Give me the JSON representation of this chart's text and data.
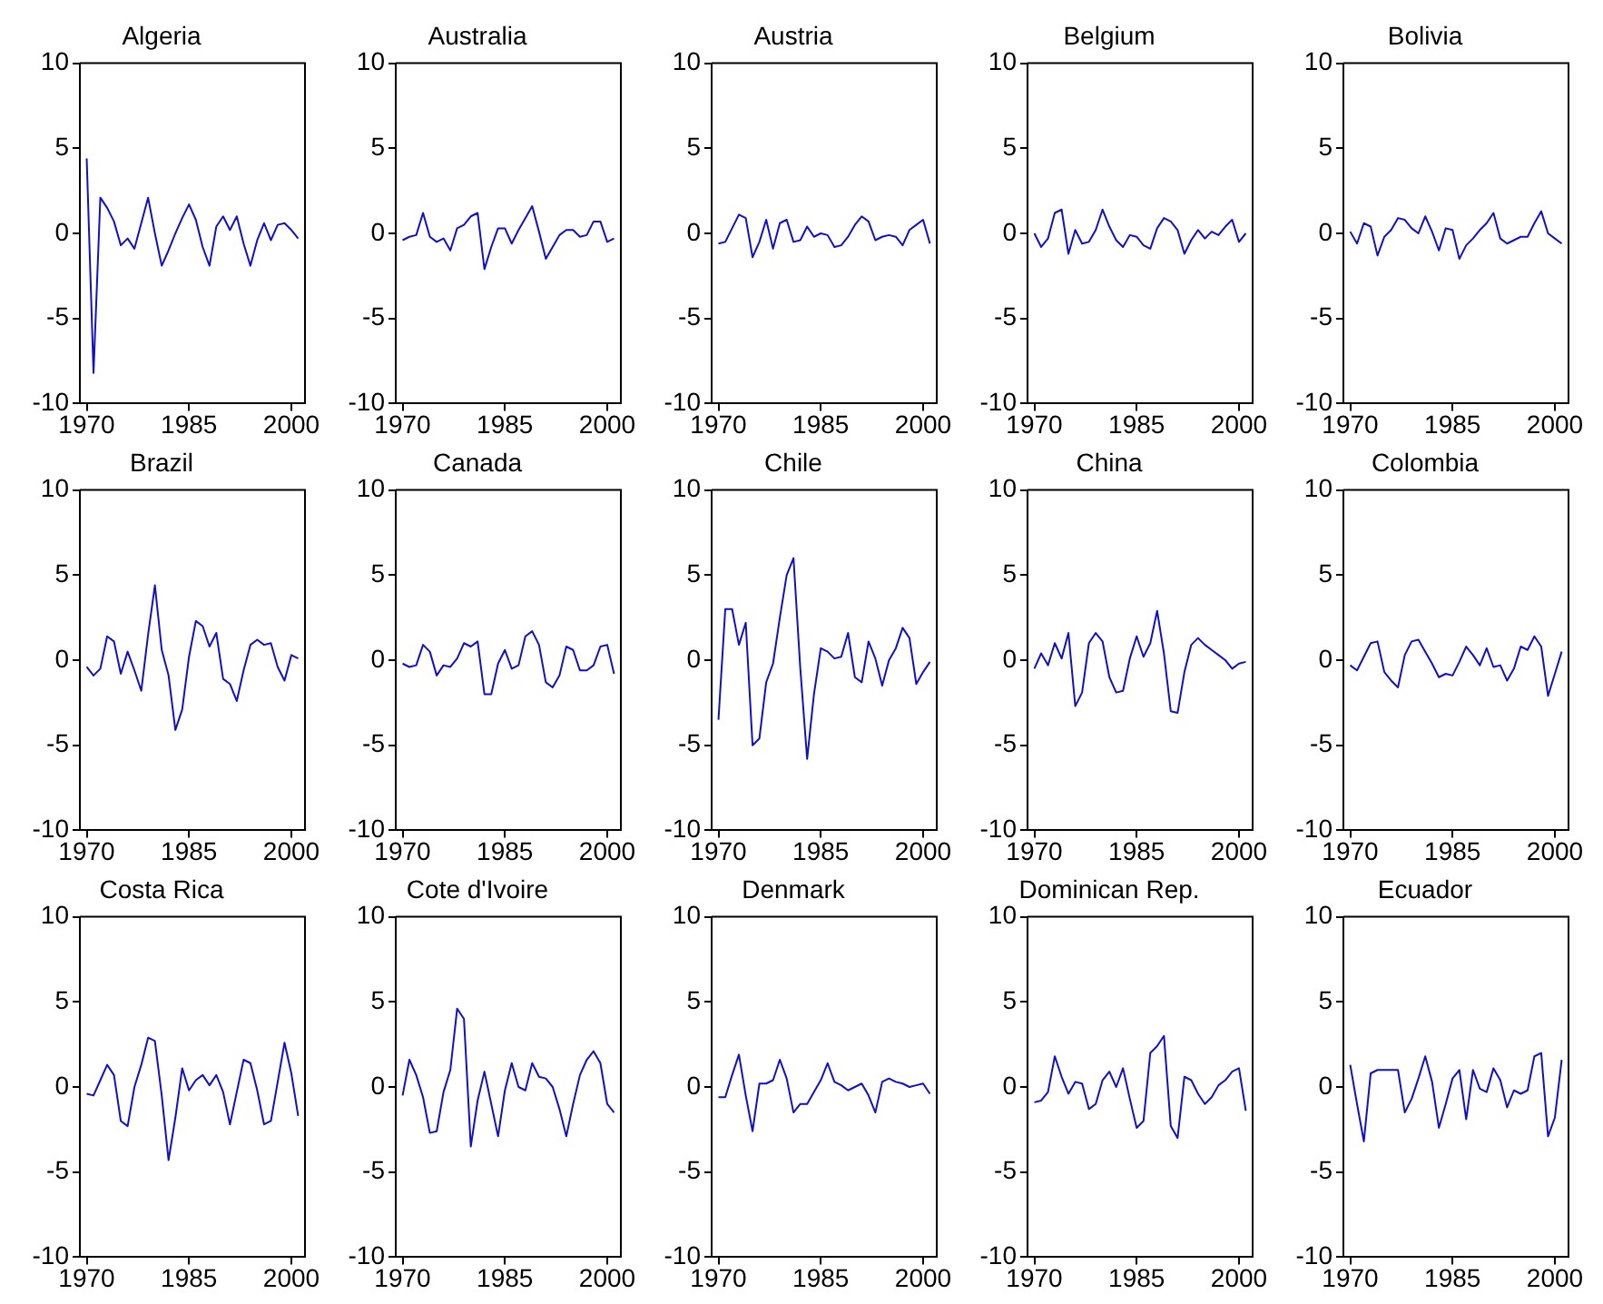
{
  "chart_data": [
    {
      "type": "line",
      "title": "Algeria",
      "color": "#1010c8",
      "xlim": [
        1969,
        2002
      ],
      "ylim": [
        -10,
        10
      ],
      "xticks": [
        1970,
        1985,
        2000
      ],
      "yticks": [
        -10,
        -5,
        0,
        5,
        10
      ],
      "x": [
        1970,
        1971,
        1972,
        1973,
        1974,
        1975,
        1976,
        1977,
        1978,
        1979,
        1980,
        1981,
        1982,
        1983,
        1984,
        1985,
        1986,
        1987,
        1988,
        1989,
        1990,
        1991,
        1992,
        1993,
        1994,
        1995,
        1996,
        1997,
        1998,
        1999,
        2000,
        2001
      ],
      "values": [
        4.4,
        -8.2,
        2.1,
        1.5,
        0.7,
        -0.7,
        -0.3,
        -0.9,
        0.6,
        2.1,
        0,
        -1.9,
        -1.0,
        0,
        0.9,
        1.7,
        0.8,
        -0.8,
        -1.9,
        0.4,
        1.0,
        0.2,
        1.0,
        -0.6,
        -1.9,
        -0.4,
        0.6,
        -0.4,
        0.5,
        0.6,
        0.2,
        -0.3
      ]
    },
    {
      "type": "line",
      "title": "Australia",
      "color": "#1010c8",
      "xlim": [
        1969,
        2002
      ],
      "ylim": [
        -10,
        10
      ],
      "xticks": [
        1970,
        1985,
        2000
      ],
      "yticks": [
        -10,
        -5,
        0,
        5,
        10
      ],
      "x": [
        1970,
        1971,
        1972,
        1973,
        1974,
        1975,
        1976,
        1977,
        1978,
        1979,
        1980,
        1981,
        1982,
        1983,
        1984,
        1985,
        1986,
        1987,
        1988,
        1989,
        1990,
        1991,
        1992,
        1993,
        1994,
        1995,
        1996,
        1997,
        1998,
        1999,
        2000,
        2001
      ],
      "values": [
        -0.4,
        -0.2,
        -0.1,
        1.2,
        -0.2,
        -0.5,
        -0.3,
        -1.0,
        0.3,
        0.5,
        1.0,
        1.2,
        -2.1,
        -0.8,
        0.3,
        0.3,
        -0.6,
        0.2,
        0.9,
        1.6,
        0.1,
        -1.5,
        -0.8,
        -0.1,
        0.2,
        0.2,
        -0.2,
        -0.1,
        0.7,
        0.7,
        -0.5,
        -0.3
      ]
    },
    {
      "type": "line",
      "title": "Austria",
      "color": "#1010c8",
      "xlim": [
        1969,
        2002
      ],
      "ylim": [
        -10,
        10
      ],
      "xticks": [
        1970,
        1985,
        2000
      ],
      "yticks": [
        -10,
        -5,
        0,
        5,
        10
      ],
      "x": [
        1970,
        1971,
        1972,
        1973,
        1974,
        1975,
        1976,
        1977,
        1978,
        1979,
        1980,
        1981,
        1982,
        1983,
        1984,
        1985,
        1986,
        1987,
        1988,
        1989,
        1990,
        1991,
        1992,
        1993,
        1994,
        1995,
        1996,
        1997,
        1998,
        1999,
        2000,
        2001
      ],
      "values": [
        -0.6,
        -0.5,
        0.3,
        1.1,
        0.9,
        -1.4,
        -0.5,
        0.8,
        -0.9,
        0.6,
        0.8,
        -0.5,
        -0.4,
        0.4,
        -0.2,
        0,
        -0.1,
        -0.8,
        -0.7,
        -0.2,
        0.5,
        1.0,
        0.7,
        -0.4,
        -0.2,
        -0.1,
        -0.2,
        -0.7,
        0.2,
        0.5,
        0.8,
        -0.6
      ]
    },
    {
      "type": "line",
      "title": "Belgium",
      "color": "#1010c8",
      "xlim": [
        1969,
        2002
      ],
      "ylim": [
        -10,
        10
      ],
      "xticks": [
        1970,
        1985,
        2000
      ],
      "yticks": [
        -10,
        -5,
        0,
        5,
        10
      ],
      "x": [
        1970,
        1971,
        1972,
        1973,
        1974,
        1975,
        1976,
        1977,
        1978,
        1979,
        1980,
        1981,
        1982,
        1983,
        1984,
        1985,
        1986,
        1987,
        1988,
        1989,
        1990,
        1991,
        1992,
        1993,
        1994,
        1995,
        1996,
        1997,
        1998,
        1999,
        2000,
        2001
      ],
      "values": [
        0,
        -0.8,
        -0.3,
        1.2,
        1.4,
        -1.2,
        0.2,
        -0.6,
        -0.5,
        0.2,
        1.4,
        0.4,
        -0.4,
        -0.8,
        -0.1,
        -0.2,
        -0.7,
        -0.9,
        0.3,
        0.9,
        0.7,
        0.2,
        -1.2,
        -0.4,
        0.2,
        -0.3,
        0.1,
        -0.1,
        0.4,
        0.8,
        -0.5,
        0
      ]
    },
    {
      "type": "line",
      "title": "Bolivia",
      "color": "#1010c8",
      "xlim": [
        1969,
        2002
      ],
      "ylim": [
        -10,
        10
      ],
      "xticks": [
        1970,
        1985,
        2000
      ],
      "yticks": [
        -10,
        -5,
        0,
        5,
        10
      ],
      "x": [
        1970,
        1971,
        1972,
        1973,
        1974,
        1975,
        1976,
        1977,
        1978,
        1979,
        1980,
        1981,
        1982,
        1983,
        1984,
        1985,
        1986,
        1987,
        1988,
        1989,
        1990,
        1991,
        1992,
        1993,
        1994,
        1995,
        1996,
        1997,
        1998,
        1999,
        2000,
        2001
      ],
      "values": [
        0.1,
        -0.6,
        0.6,
        0.4,
        -1.3,
        -0.2,
        0.2,
        0.9,
        0.8,
        0.3,
        0,
        1.0,
        0.1,
        -1.0,
        0.3,
        0.2,
        -1.5,
        -0.7,
        -0.3,
        0.2,
        0.6,
        1.2,
        -0.3,
        -0.6,
        -0.4,
        -0.2,
        -0.2,
        0.6,
        1.3,
        0,
        -0.3,
        -0.6
      ]
    },
    {
      "type": "line",
      "title": "Brazil",
      "color": "#1010c8",
      "xlim": [
        1969,
        2002
      ],
      "ylim": [
        -10,
        10
      ],
      "xticks": [
        1970,
        1985,
        2000
      ],
      "yticks": [
        -10,
        -5,
        0,
        5,
        10
      ],
      "x": [
        1970,
        1971,
        1972,
        1973,
        1974,
        1975,
        1976,
        1977,
        1978,
        1979,
        1980,
        1981,
        1982,
        1983,
        1984,
        1985,
        1986,
        1987,
        1988,
        1989,
        1990,
        1991,
        1992,
        1993,
        1994,
        1995,
        1996,
        1997,
        1998,
        1999,
        2000,
        2001
      ],
      "values": [
        -0.4,
        -0.9,
        -0.5,
        1.4,
        1.1,
        -0.8,
        0.5,
        -0.6,
        -1.8,
        1.5,
        4.4,
        0.6,
        -0.9,
        -4.1,
        -2.9,
        0.2,
        2.3,
        2.0,
        0.8,
        1.6,
        -1.1,
        -1.4,
        -2.4,
        -0.6,
        0.9,
        1.2,
        0.9,
        1.0,
        -0.4,
        -1.2,
        0.3,
        0.1
      ]
    },
    {
      "type": "line",
      "title": "Canada",
      "color": "#1010c8",
      "xlim": [
        1969,
        2002
      ],
      "ylim": [
        -10,
        10
      ],
      "xticks": [
        1970,
        1985,
        2000
      ],
      "yticks": [
        -10,
        -5,
        0,
        5,
        10
      ],
      "x": [
        1970,
        1971,
        1972,
        1973,
        1974,
        1975,
        1976,
        1977,
        1978,
        1979,
        1980,
        1981,
        1982,
        1983,
        1984,
        1985,
        1986,
        1987,
        1988,
        1989,
        1990,
        1991,
        1992,
        1993,
        1994,
        1995,
        1996,
        1997,
        1998,
        1999,
        2000,
        2001
      ],
      "values": [
        -0.2,
        -0.4,
        -0.3,
        0.9,
        0.5,
        -0.9,
        -0.3,
        -0.4,
        0.1,
        1.0,
        0.8,
        1.1,
        -2.0,
        -2.0,
        -0.2,
        0.6,
        -0.5,
        -0.3,
        1.4,
        1.7,
        0.9,
        -1.3,
        -1.6,
        -0.9,
        0.8,
        0.6,
        -0.6,
        -0.6,
        -0.3,
        0.8,
        0.9,
        -0.8
      ]
    },
    {
      "type": "line",
      "title": "Chile",
      "color": "#1010c8",
      "xlim": [
        1969,
        2002
      ],
      "ylim": [
        -10,
        10
      ],
      "xticks": [
        1970,
        1985,
        2000
      ],
      "yticks": [
        -10,
        -5,
        0,
        5,
        10
      ],
      "x": [
        1970,
        1971,
        1972,
        1973,
        1974,
        1975,
        1976,
        1977,
        1978,
        1979,
        1980,
        1981,
        1982,
        1983,
        1984,
        1985,
        1986,
        1987,
        1988,
        1989,
        1990,
        1991,
        1992,
        1993,
        1994,
        1995,
        1996,
        1997,
        1998,
        1999,
        2000,
        2001
      ],
      "values": [
        -3.5,
        3.0,
        3.0,
        0.9,
        2.2,
        -5.0,
        -4.6,
        -1.3,
        -0.2,
        2.5,
        5.0,
        6.0,
        -0.5,
        -5.8,
        -2.0,
        0.7,
        0.5,
        0.1,
        0.2,
        1.6,
        -1.0,
        -1.3,
        1.1,
        0.1,
        -1.5,
        0,
        0.7,
        1.9,
        1.3,
        -1.4,
        -0.7,
        -0.1
      ]
    },
    {
      "type": "line",
      "title": "China",
      "color": "#1010c8",
      "xlim": [
        1969,
        2002
      ],
      "ylim": [
        -10,
        10
      ],
      "xticks": [
        1970,
        1985,
        2000
      ],
      "yticks": [
        -10,
        -5,
        0,
        5,
        10
      ],
      "x": [
        1970,
        1971,
        1972,
        1973,
        1974,
        1975,
        1976,
        1977,
        1978,
        1979,
        1980,
        1981,
        1982,
        1983,
        1984,
        1985,
        1986,
        1987,
        1988,
        1989,
        1990,
        1991,
        1992,
        1993,
        1994,
        1995,
        1996,
        1997,
        1998,
        1999,
        2000,
        2001
      ],
      "values": [
        -0.5,
        0.4,
        -0.3,
        1.0,
        0.1,
        1.6,
        -2.7,
        -1.9,
        1.0,
        1.6,
        1.1,
        -1.0,
        -1.9,
        -1.8,
        0.1,
        1.4,
        0.2,
        1.0,
        2.9,
        0.4,
        -3.0,
        -3.1,
        -0.7,
        0.9,
        1.3,
        0.9,
        0.6,
        0.3,
        0,
        -0.5,
        -0.2,
        -0.1
      ]
    },
    {
      "type": "line",
      "title": "Colombia",
      "color": "#1010c8",
      "xlim": [
        1969,
        2002
      ],
      "ylim": [
        -10,
        10
      ],
      "xticks": [
        1970,
        1985,
        2000
      ],
      "yticks": [
        -10,
        -5,
        0,
        5,
        10
      ],
      "x": [
        1970,
        1971,
        1972,
        1973,
        1974,
        1975,
        1976,
        1977,
        1978,
        1979,
        1980,
        1981,
        1982,
        1983,
        1984,
        1985,
        1986,
        1987,
        1988,
        1989,
        1990,
        1991,
        1992,
        1993,
        1994,
        1995,
        1996,
        1997,
        1998,
        1999,
        2000,
        2001
      ],
      "values": [
        -0.3,
        -0.6,
        0.2,
        1.0,
        1.1,
        -0.7,
        -1.2,
        -1.6,
        0.3,
        1.1,
        1.2,
        0.5,
        -0.2,
        -1.0,
        -0.8,
        -0.9,
        -0.1,
        0.8,
        0.3,
        -0.3,
        0.7,
        -0.4,
        -0.3,
        -1.2,
        -0.5,
        0.8,
        0.6,
        1.4,
        0.8,
        -2.1,
        -0.8,
        0.5
      ]
    },
    {
      "type": "line",
      "title": "Costa Rica",
      "color": "#1010c8",
      "xlim": [
        1969,
        2002
      ],
      "ylim": [
        -10,
        10
      ],
      "xticks": [
        1970,
        1985,
        2000
      ],
      "yticks": [
        -10,
        -5,
        0,
        5,
        10
      ],
      "x": [
        1970,
        1971,
        1972,
        1973,
        1974,
        1975,
        1976,
        1977,
        1978,
        1979,
        1980,
        1981,
        1982,
        1983,
        1984,
        1985,
        1986,
        1987,
        1988,
        1989,
        1990,
        1991,
        1992,
        1993,
        1994,
        1995,
        1996,
        1997,
        1998,
        1999,
        2000,
        2001
      ],
      "values": [
        -0.4,
        -0.5,
        0.4,
        1.3,
        0.7,
        -2.0,
        -2.3,
        0,
        1.3,
        2.9,
        2.7,
        -0.5,
        -4.3,
        -1.8,
        1.1,
        -0.2,
        0.4,
        0.7,
        0.1,
        0.7,
        -0.3,
        -2.2,
        -0.3,
        1.6,
        1.4,
        -0.2,
        -2.2,
        -2.0,
        0.3,
        2.6,
        0.8,
        -1.7
      ]
    },
    {
      "type": "line",
      "title": "Cote d'Ivoire",
      "color": "#1010c8",
      "xlim": [
        1969,
        2002
      ],
      "ylim": [
        -10,
        10
      ],
      "xticks": [
        1970,
        1985,
        2000
      ],
      "yticks": [
        -10,
        -5,
        0,
        5,
        10
      ],
      "x": [
        1970,
        1971,
        1972,
        1973,
        1974,
        1975,
        1976,
        1977,
        1978,
        1979,
        1980,
        1981,
        1982,
        1983,
        1984,
        1985,
        1986,
        1987,
        1988,
        1989,
        1990,
        1991,
        1992,
        1993,
        1994,
        1995,
        1996,
        1997,
        1998,
        1999,
        2000,
        2001
      ],
      "values": [
        -0.5,
        1.6,
        0.7,
        -0.6,
        -2.7,
        -2.6,
        -0.3,
        1.0,
        4.6,
        4.0,
        -3.5,
        -0.8,
        0.9,
        -1.0,
        -2.9,
        -0.2,
        1.4,
        0,
        -0.2,
        1.4,
        0.6,
        0.5,
        0,
        -1.3,
        -2.9,
        -1.0,
        0.7,
        1.6,
        2.1,
        1.4,
        -1.0,
        -1.5
      ]
    },
    {
      "type": "line",
      "title": "Denmark",
      "color": "#1010c8",
      "xlim": [
        1969,
        2002
      ],
      "ylim": [
        -10,
        10
      ],
      "xticks": [
        1970,
        1985,
        2000
      ],
      "yticks": [
        -10,
        -5,
        0,
        5,
        10
      ],
      "x": [
        1970,
        1971,
        1972,
        1973,
        1974,
        1975,
        1976,
        1977,
        1978,
        1979,
        1980,
        1981,
        1982,
        1983,
        1984,
        1985,
        1986,
        1987,
        1988,
        1989,
        1990,
        1991,
        1992,
        1993,
        1994,
        1995,
        1996,
        1997,
        1998,
        1999,
        2000,
        2001
      ],
      "values": [
        -0.6,
        -0.6,
        0.7,
        1.9,
        -0.5,
        -2.6,
        0.2,
        0.2,
        0.4,
        1.6,
        0.5,
        -1.5,
        -1.0,
        -1.0,
        -0.3,
        0.4,
        1.4,
        0.3,
        0.1,
        -0.2,
        0,
        0.2,
        -0.5,
        -1.5,
        0.3,
        0.5,
        0.3,
        0.2,
        0,
        0.1,
        0.2,
        -0.4
      ]
    },
    {
      "type": "line",
      "title": "Dominican Rep.",
      "color": "#1010c8",
      "xlim": [
        1969,
        2002
      ],
      "ylim": [
        -10,
        10
      ],
      "xticks": [
        1970,
        1985,
        2000
      ],
      "yticks": [
        -10,
        -5,
        0,
        5,
        10
      ],
      "x": [
        1970,
        1971,
        1972,
        1973,
        1974,
        1975,
        1976,
        1977,
        1978,
        1979,
        1980,
        1981,
        1982,
        1983,
        1984,
        1985,
        1986,
        1987,
        1988,
        1989,
        1990,
        1991,
        1992,
        1993,
        1994,
        1995,
        1996,
        1997,
        1998,
        1999,
        2000,
        2001
      ],
      "values": [
        -0.9,
        -0.8,
        -0.3,
        1.8,
        0.6,
        -0.4,
        0.3,
        0.2,
        -1.3,
        -1.0,
        0.4,
        0.9,
        0,
        1.1,
        -0.7,
        -2.4,
        -2.0,
        2.0,
        2.4,
        3.0,
        -2.3,
        -3.0,
        0.6,
        0.4,
        -0.4,
        -1.0,
        -0.6,
        0.1,
        0.4,
        0.9,
        1.1,
        -1.4
      ]
    },
    {
      "type": "line",
      "title": "Ecuador",
      "color": "#1010c8",
      "xlim": [
        1969,
        2002
      ],
      "ylim": [
        -10,
        10
      ],
      "xticks": [
        1970,
        1985,
        2000
      ],
      "yticks": [
        -10,
        -5,
        0,
        5,
        10
      ],
      "x": [
        1970,
        1971,
        1972,
        1973,
        1974,
        1975,
        1976,
        1977,
        1978,
        1979,
        1980,
        1981,
        1982,
        1983,
        1984,
        1985,
        1986,
        1987,
        1988,
        1989,
        1990,
        1991,
        1992,
        1993,
        1994,
        1995,
        1996,
        1997,
        1998,
        1999,
        2000,
        2001
      ],
      "values": [
        1.3,
        -1.0,
        -3.2,
        0.8,
        1.0,
        1.0,
        1.0,
        1.0,
        -1.5,
        -0.7,
        0.5,
        1.8,
        0.3,
        -2.4,
        -1.0,
        0.5,
        1.0,
        -1.9,
        1.0,
        -0.1,
        -0.3,
        1.1,
        0.4,
        -1.2,
        -0.2,
        -0.4,
        -0.2,
        1.8,
        2.0,
        -2.9,
        -1.8,
        1.6
      ]
    }
  ]
}
